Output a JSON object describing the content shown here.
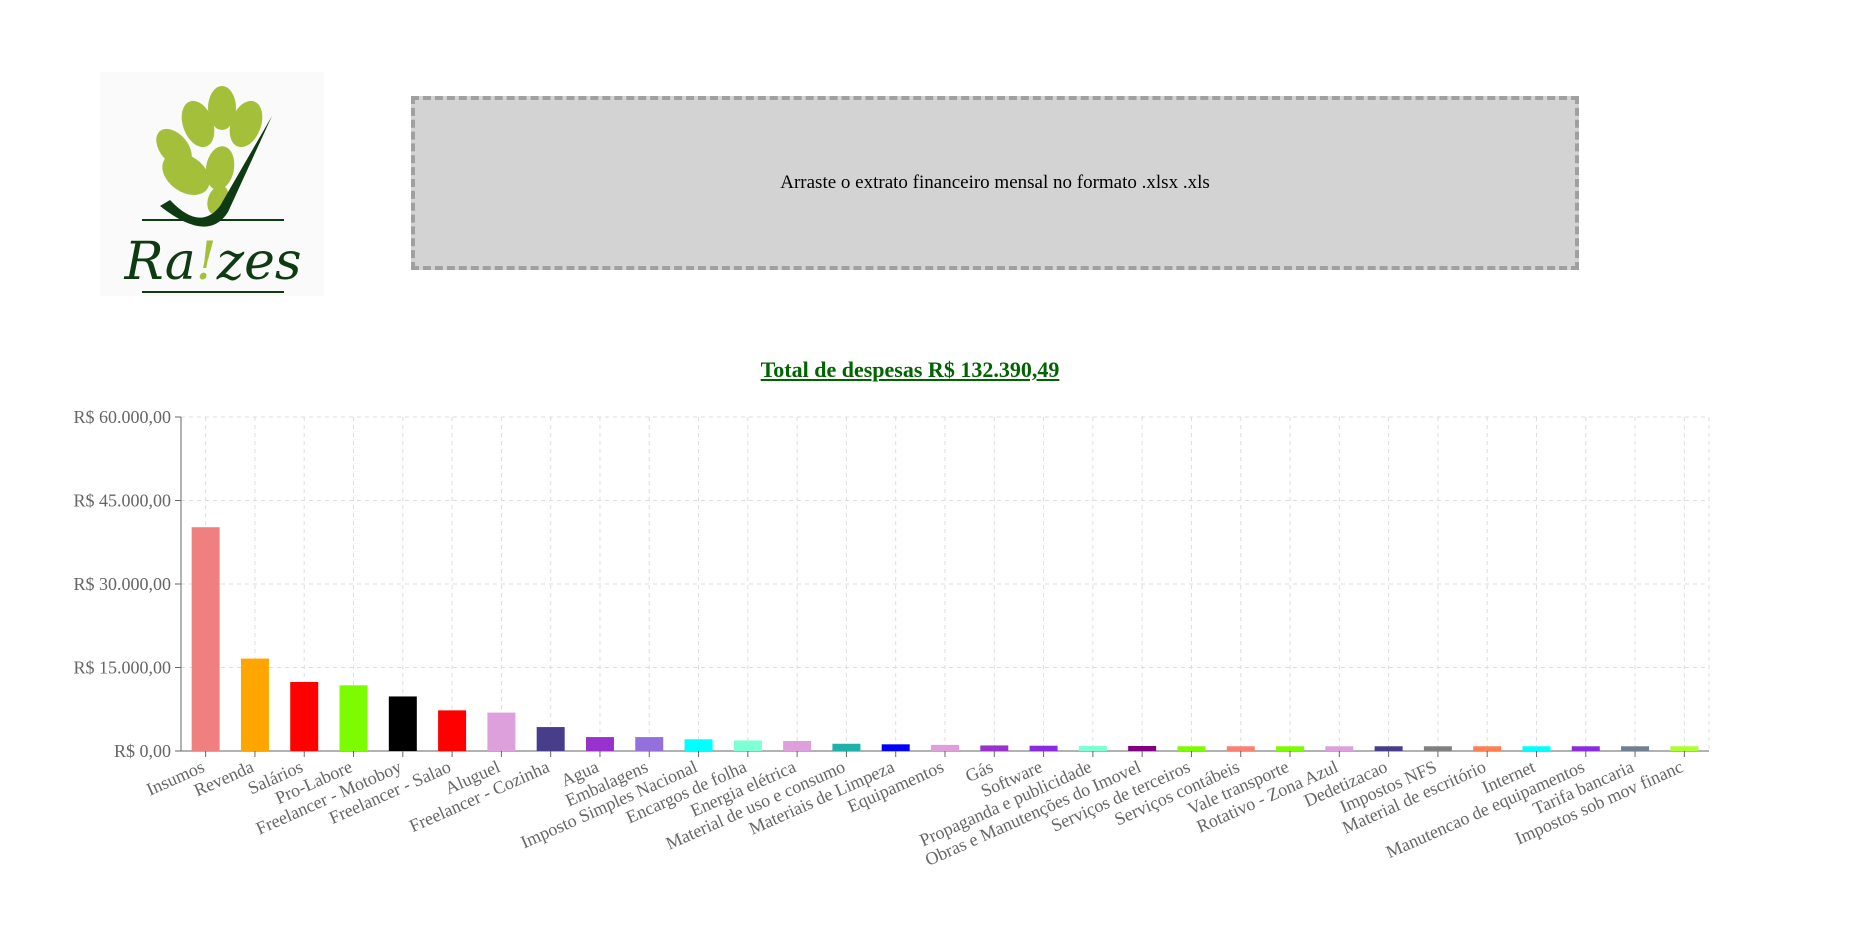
{
  "logo": {
    "text_left": "Ra",
    "text_mark": "!",
    "text_right": "zes",
    "leaf_color": "#a4c03a",
    "stem_color": "#0f3b12"
  },
  "dropzone": {
    "label": "Arraste o extrato financeiro mensal no formato .xlsx .xls"
  },
  "summary": {
    "total_label": "Total de despesas R$ 132.390,49"
  },
  "chart_data": {
    "type": "bar",
    "title": "",
    "xlabel": "",
    "ylabel": "",
    "ylim": [
      0,
      60000
    ],
    "yticks": [
      0,
      15000,
      30000,
      45000,
      60000
    ],
    "ytick_labels": [
      "R$ 0,00",
      "R$ 15.000,00",
      "R$ 30.000,00",
      "R$ 45.000,00",
      "R$ 60.000,00"
    ],
    "grid": true,
    "legend": "none",
    "categories": [
      "Insumos",
      "Revenda",
      "Salários",
      "Pro-Labore",
      "Freelancer - Motoboy",
      "Freelancer - Salao",
      "Aluguel",
      "Freelancer - Cozinha",
      "Agua",
      "Embalagens",
      "Imposto Simples Nacional",
      "Encargos de folha",
      "Energia elétrica",
      "Material de uso e consumo",
      "Materiais de Limpeza",
      "Equipamentos",
      "Gás",
      "Software",
      "Propaganda e publicidade",
      "Obras e Manutenções do Imovel",
      "Serviços de terceiros",
      "Serviços contábeis",
      "Vale transporte",
      "Rotativo - Zona Azul",
      "Dedetizacao",
      "Impostos NFS",
      "Material de escritório",
      "Internet",
      "Manutencao de equipamentos",
      "Tarifa bancaria",
      "Impostos sob mov financ"
    ],
    "values": [
      40200,
      16600,
      12400,
      11800,
      9800,
      7300,
      6900,
      4300,
      2500,
      2500,
      2100,
      1900,
      1800,
      1300,
      1200,
      1100,
      1000,
      950,
      900,
      900,
      850,
      850,
      850,
      850,
      850,
      850,
      850,
      850,
      850,
      850,
      850
    ],
    "colors": [
      "#f08080",
      "#ffa500",
      "#ff0000",
      "#7cfc00",
      "#000000",
      "#ff0000",
      "#dda0dd",
      "#483d8b",
      "#9932cc",
      "#9370db",
      "#00ffff",
      "#7fffd4",
      "#dda0dd",
      "#20b2aa",
      "#0000ff",
      "#dda0dd",
      "#9932cc",
      "#8a2be2",
      "#7fffd4",
      "#800080",
      "#7cfc00",
      "#fa8072",
      "#7cfc00",
      "#dda0dd",
      "#483d8b",
      "#808080",
      "#ff7f50",
      "#00ffff",
      "#8a2be2",
      "#708090",
      "#adff2f"
    ]
  }
}
